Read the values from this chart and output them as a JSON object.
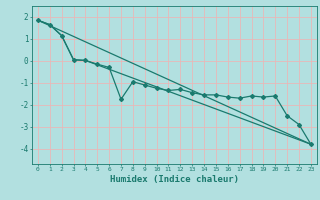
{
  "xlabel": "Humidex (Indice chaleur)",
  "ylabel": "",
  "background_color": "#b2e0e0",
  "grid_color": "#e8b8b8",
  "line_color": "#1a7a6e",
  "xlim": [
    -0.5,
    23.5
  ],
  "ylim": [
    -4.7,
    2.5
  ],
  "yticks": [
    2,
    1,
    0,
    -1,
    -2,
    -3,
    -4
  ],
  "xticks": [
    0,
    1,
    2,
    3,
    4,
    5,
    6,
    7,
    8,
    9,
    10,
    11,
    12,
    13,
    14,
    15,
    16,
    17,
    18,
    19,
    20,
    21,
    22,
    23
  ],
  "line1_x": [
    0,
    1,
    2,
    3,
    4,
    5,
    6,
    7,
    8,
    9,
    10,
    11,
    12,
    13,
    14,
    15,
    16,
    17,
    18,
    19,
    20,
    21,
    22,
    23
  ],
  "line1_y": [
    1.85,
    1.65,
    1.15,
    0.05,
    0.02,
    -0.15,
    -0.3,
    -1.75,
    -0.95,
    -1.1,
    -1.25,
    -1.35,
    -1.3,
    -1.45,
    -1.55,
    -1.55,
    -1.65,
    -1.7,
    -1.6,
    -1.65,
    -1.6,
    -2.5,
    -2.9,
    -3.8
  ],
  "line2_x": [
    0,
    1,
    2,
    3,
    4,
    23
  ],
  "line2_y": [
    1.85,
    1.65,
    1.15,
    0.05,
    0.02,
    -3.8
  ],
  "line3_x": [
    0,
    23
  ],
  "line3_y": [
    1.85,
    -3.8
  ]
}
